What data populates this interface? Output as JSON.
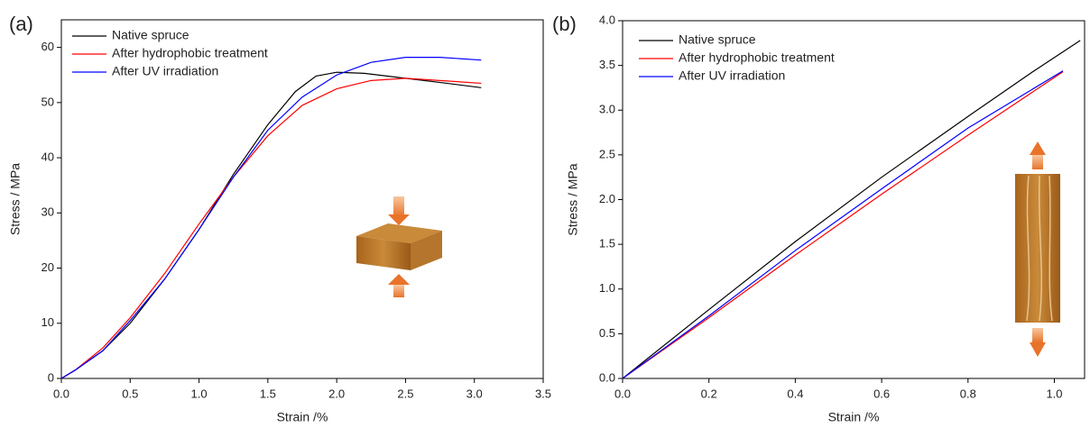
{
  "chart_data": [
    {
      "type": "line",
      "panel_label": "(a)",
      "xlabel": "Strain /%",
      "ylabel": "Stress / MPa",
      "xlim": [
        0,
        3.5
      ],
      "ylim": [
        0,
        65
      ],
      "xticks": [
        {
          "value": 0,
          "label": "0.0"
        },
        0.5,
        {
          "value": 1,
          "label": "1.0"
        },
        1.5,
        {
          "value": 2,
          "label": "2.0"
        },
        2.5,
        {
          "value": 3,
          "label": "3.0"
        },
        3.5
      ],
      "yticks": [
        0,
        10,
        20,
        30,
        40,
        50,
        60
      ],
      "series": [
        {
          "name": "Native spruce",
          "color": "#000000",
          "x": [
            0,
            0.1,
            0.3,
            0.5,
            0.75,
            1.0,
            1.25,
            1.5,
            1.7,
            1.85,
            2.0,
            2.2,
            2.5,
            2.8,
            3.05
          ],
          "values": [
            0,
            1.5,
            5,
            10,
            18,
            27,
            37,
            46,
            52,
            54.8,
            55.5,
            55.3,
            54.4,
            53.5,
            52.7
          ]
        },
        {
          "name": "After hydrophobic treatment",
          "color": "#ff0000",
          "x": [
            0,
            0.1,
            0.3,
            0.5,
            0.75,
            1.0,
            1.25,
            1.5,
            1.75,
            2.0,
            2.25,
            2.5,
            2.75,
            3.05
          ],
          "values": [
            0,
            1.5,
            5.5,
            11,
            19,
            28,
            36.5,
            44,
            49.5,
            52.5,
            54,
            54.4,
            54,
            53.5
          ]
        },
        {
          "name": "After UV irradiation",
          "color": "#0000ff",
          "x": [
            0,
            0.1,
            0.3,
            0.5,
            0.75,
            1.0,
            1.25,
            1.5,
            1.75,
            2.0,
            2.25,
            2.5,
            2.75,
            3.05
          ],
          "values": [
            0,
            1.5,
            5,
            10.5,
            18,
            27,
            36.5,
            45,
            51,
            55,
            57.3,
            58.2,
            58.2,
            57.7
          ]
        }
      ]
    },
    {
      "type": "line",
      "panel_label": "(b)",
      "xlabel": "Strain /%",
      "ylabel": "Stress / MPa",
      "xlim": [
        0,
        1.07
      ],
      "ylim": [
        0,
        4.0
      ],
      "xticks": [
        {
          "value": 0,
          "label": "0.0"
        },
        0.2,
        0.4,
        0.6,
        0.8,
        {
          "value": 1,
          "label": "1.0"
        }
      ],
      "yticks": [
        {
          "value": 0,
          "label": "0.0"
        },
        0.5,
        {
          "value": 1,
          "label": "1.0"
        },
        1.5,
        {
          "value": 2,
          "label": "2.0"
        },
        2.5,
        {
          "value": 3,
          "label": "3.0"
        },
        3.5,
        {
          "value": 4,
          "label": "4.0"
        }
      ],
      "series": [
        {
          "name": "Native spruce",
          "color": "#000000",
          "x": [
            0,
            0.2,
            0.4,
            0.6,
            0.8,
            0.95,
            1.06
          ],
          "values": [
            0,
            0.77,
            1.53,
            2.25,
            2.93,
            3.43,
            3.78
          ]
        },
        {
          "name": "After hydrophobic treatment",
          "color": "#ff0000",
          "x": [
            0,
            0.2,
            0.4,
            0.6,
            0.8,
            1.02
          ],
          "values": [
            0,
            0.68,
            1.38,
            2.06,
            2.72,
            3.43
          ]
        },
        {
          "name": "After UV irradiation",
          "color": "#0000ff",
          "x": [
            0,
            0.2,
            0.4,
            0.6,
            0.8,
            1.02
          ],
          "values": [
            0,
            0.7,
            1.43,
            2.12,
            2.8,
            3.44
          ]
        }
      ]
    }
  ]
}
